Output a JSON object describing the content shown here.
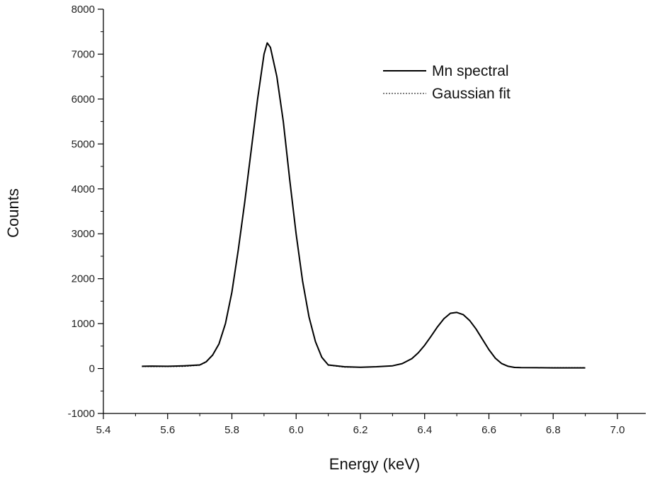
{
  "chart_data": {
    "type": "line",
    "xlabel": "Energy (keV)",
    "ylabel": "Counts",
    "xlim": [
      5.4,
      7.1
    ],
    "ylim": [
      -1000,
      8000
    ],
    "x_ticks": [
      5.4,
      5.6,
      5.8,
      6.0,
      6.2,
      6.4,
      6.6,
      6.8,
      7.0
    ],
    "x_tick_labels": [
      "5.4",
      "5.6",
      "5.8",
      "6.0",
      "6.2",
      "6.4",
      "6.6",
      "6.8",
      "7.0"
    ],
    "y_ticks": [
      -1000,
      0,
      1000,
      2000,
      3000,
      4000,
      5000,
      6000,
      7000,
      8000
    ],
    "y_tick_labels": [
      "-1000",
      "0",
      "1000",
      "2000",
      "3000",
      "4000",
      "5000",
      "6000",
      "7000",
      "8000"
    ],
    "legend_position": "top-right",
    "grid": false,
    "series": [
      {
        "name": "Mn spectral",
        "style": "solid",
        "color": "#000000",
        "x": [
          5.52,
          5.55,
          5.6,
          5.65,
          5.7,
          5.72,
          5.74,
          5.76,
          5.78,
          5.8,
          5.82,
          5.84,
          5.86,
          5.88,
          5.9,
          5.91,
          5.92,
          5.94,
          5.96,
          5.98,
          6.0,
          6.02,
          6.04,
          6.06,
          6.08,
          6.1,
          6.15,
          6.2,
          6.25,
          6.3,
          6.33,
          6.36,
          6.38,
          6.4,
          6.42,
          6.44,
          6.46,
          6.48,
          6.5,
          6.52,
          6.54,
          6.56,
          6.58,
          6.6,
          6.62,
          6.64,
          6.66,
          6.68,
          6.7,
          6.75,
          6.8,
          6.85,
          6.9
        ],
        "y": [
          50,
          55,
          50,
          60,
          80,
          150,
          300,
          550,
          1000,
          1700,
          2650,
          3700,
          4850,
          6000,
          7000,
          7250,
          7150,
          6500,
          5500,
          4200,
          3000,
          1950,
          1150,
          600,
          250,
          80,
          40,
          30,
          40,
          60,
          110,
          220,
          350,
          520,
          720,
          930,
          1110,
          1230,
          1250,
          1200,
          1070,
          880,
          650,
          420,
          230,
          110,
          50,
          25,
          20,
          18,
          15,
          15,
          15
        ]
      },
      {
        "name": "Gaussian fit",
        "style": "dotted",
        "color": "#000000",
        "x": [
          5.52,
          5.55,
          5.6,
          5.65,
          5.7,
          5.72,
          5.74,
          5.76,
          5.78,
          5.8,
          5.82,
          5.84,
          5.86,
          5.88,
          5.9,
          5.91,
          5.92,
          5.94,
          5.96,
          5.98,
          6.0,
          6.02,
          6.04,
          6.06,
          6.08,
          6.1,
          6.15,
          6.2,
          6.25,
          6.3,
          6.33,
          6.36,
          6.38,
          6.4,
          6.42,
          6.44,
          6.46,
          6.48,
          6.5,
          6.52,
          6.54,
          6.56,
          6.58,
          6.6,
          6.62,
          6.64,
          6.66,
          6.68,
          6.7,
          6.75,
          6.8,
          6.85,
          6.9
        ],
        "y": [
          40,
          40,
          40,
          45,
          70,
          140,
          290,
          540,
          990,
          1690,
          2640,
          3690,
          4840,
          5990,
          6990,
          7240,
          7140,
          6490,
          5490,
          4190,
          2990,
          1940,
          1140,
          590,
          240,
          70,
          30,
          25,
          35,
          60,
          105,
          215,
          345,
          515,
          715,
          925,
          1105,
          1225,
          1245,
          1195,
          1065,
          875,
          645,
          415,
          225,
          105,
          45,
          30,
          25,
          25,
          25,
          25,
          25
        ]
      }
    ]
  }
}
